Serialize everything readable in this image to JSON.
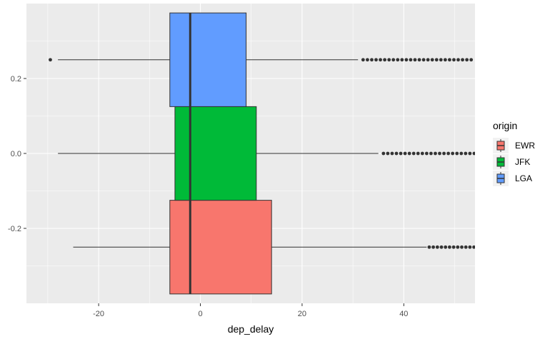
{
  "chart_data": {
    "type": "boxplot",
    "orientation": "horizontal",
    "title": "",
    "xlabel": "dep_delay",
    "ylabel": "",
    "xlim": [
      -34.2,
      54
    ],
    "ylim": [
      -0.4,
      0.4
    ],
    "x_ticks": [
      -20,
      0,
      20,
      40
    ],
    "y_ticks": [
      -0.2,
      0.0,
      0.2
    ],
    "y_tick_labels": [
      "-0.2",
      "0.0",
      "0.2"
    ],
    "grid": true,
    "background": "#ebebeb",
    "legend": {
      "title": "origin",
      "position": "right",
      "entries": [
        "EWR",
        "JFK",
        "LGA"
      ]
    },
    "series": [
      {
        "name": "EWR",
        "color": "#f8766d",
        "y_min": -0.375,
        "y_max": -0.125,
        "y_center": -0.25,
        "whisker_low": -25,
        "q1": -6,
        "median": -2,
        "q3": 14,
        "whisker_high": 44.5,
        "outlier_start": 45,
        "outlier_step": 0.8,
        "outlier_until": 54
      },
      {
        "name": "JFK",
        "color": "#00ba38",
        "y_min": -0.125,
        "y_max": 0.125,
        "y_center": 0,
        "whisker_low": -28,
        "q1": -5,
        "median": -2,
        "q3": 11,
        "whisker_high": 35,
        "outlier_start": 36,
        "outlier_step": 0.85,
        "outlier_until": 54
      },
      {
        "name": "LGA",
        "color": "#619cff",
        "y_min": 0.125,
        "y_max": 0.375,
        "y_center": 0.25,
        "whisker_low": -28,
        "q1": -6,
        "median": -2,
        "q3": 9,
        "whisker_high": 31,
        "outliers_low": [
          -29.5
        ],
        "outlier_start": 32,
        "outlier_step": 0.85,
        "outlier_until": 54
      }
    ]
  }
}
